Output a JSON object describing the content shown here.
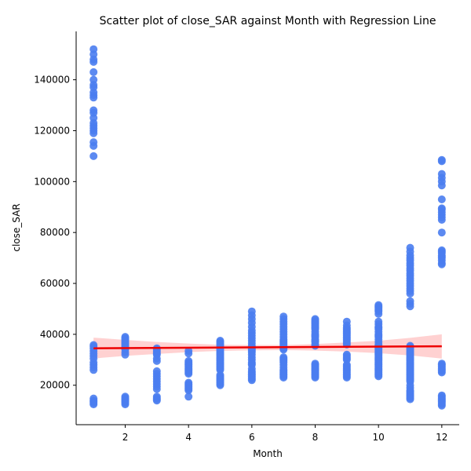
{
  "chart_data": {
    "type": "scatter",
    "title": "Scatter plot of close_SAR against Month with Regression Line",
    "xlabel": "Month",
    "ylabel": "close_SAR",
    "xlim": [
      0.45,
      12.55
    ],
    "ylim": [
      4500,
      159000
    ],
    "xticks": [
      2,
      4,
      6,
      8,
      10,
      12
    ],
    "yticks": [
      20000,
      40000,
      60000,
      80000,
      100000,
      120000,
      140000
    ],
    "grid": false,
    "point_color": "#4a7df0",
    "regression_color": "#ee0000",
    "band_color": "#ffb3b3",
    "points_by_month": [
      {
        "month": 1,
        "values": [
          152000,
          150000,
          148000,
          147000,
          143000,
          140000,
          138000,
          137000,
          135000,
          134000,
          133000,
          128000,
          127000,
          125000,
          123000,
          122000,
          121000,
          120000,
          119000,
          115500,
          114000,
          110000,
          35800,
          35200,
          34500,
          33500,
          32500,
          31500,
          30500,
          29000,
          28000,
          27000,
          26000,
          14800,
          14000,
          13500,
          13000,
          12500
        ]
      },
      {
        "month": 2,
        "values": [
          39000,
          38500,
          38000,
          37500,
          37000,
          36500,
          36000,
          35500,
          35000,
          34500,
          34000,
          33000,
          32000,
          15500,
          15000,
          14500,
          14000,
          13500,
          13000,
          12500
        ]
      },
      {
        "month": 3,
        "values": [
          34500,
          34000,
          33500,
          33000,
          32500,
          32000,
          30500,
          29500,
          25500,
          24500,
          23500,
          22500,
          21500,
          20500,
          19500,
          18500,
          15500,
          15000,
          14500,
          14000
        ]
      },
      {
        "month": 4,
        "values": [
          33500,
          32500,
          29500,
          29000,
          28500,
          28000,
          27500,
          27000,
          26500,
          26000,
          25500,
          25000,
          24500,
          21000,
          20500,
          20000,
          19500,
          19000,
          18500,
          18000,
          15500
        ]
      },
      {
        "month": 5,
        "values": [
          37500,
          37000,
          36500,
          36000,
          35500,
          35000,
          34500,
          34000,
          33500,
          33000,
          32500,
          32000,
          31500,
          31000,
          30500,
          30000,
          29500,
          29000,
          28500,
          28000,
          27500,
          27000,
          26500,
          26000,
          24000,
          23500,
          23000,
          22500,
          22000,
          21500,
          21000,
          20500,
          20000
        ]
      },
      {
        "month": 6,
        "values": [
          49000,
          47500,
          46000,
          44500,
          43000,
          41500,
          40500,
          39500,
          38500,
          37500,
          36500,
          35500,
          35000,
          34500,
          34000,
          33500,
          33000,
          32000,
          31000,
          30000,
          29000,
          28500,
          28000,
          26500,
          25500,
          25000,
          24500,
          24000,
          23500,
          23000,
          22500,
          22000
        ]
      },
      {
        "month": 7,
        "values": [
          47000,
          46000,
          45000,
          44000,
          43000,
          42000,
          41000,
          40000,
          39000,
          38000,
          37500,
          37000,
          36500,
          36000,
          35500,
          35000,
          34500,
          34000,
          31000,
          30500,
          30000,
          29500,
          29000,
          28000,
          27000,
          26000,
          25500,
          25000,
          24500,
          24000,
          23500,
          23000
        ]
      },
      {
        "month": 8,
        "values": [
          46000,
          45500,
          45000,
          44500,
          44000,
          43500,
          43000,
          42500,
          42000,
          41000,
          40000,
          39500,
          39000,
          38000,
          37500,
          37000,
          36000,
          35500,
          28500,
          28000,
          27500,
          27000,
          26500,
          26000,
          25500,
          25000,
          24500,
          24000,
          23500,
          23000
        ]
      },
      {
        "month": 9,
        "values": [
          45000,
          43500,
          42500,
          42000,
          41500,
          41000,
          40500,
          40000,
          39500,
          39000,
          38500,
          38000,
          37500,
          37000,
          36500,
          36000,
          32000,
          31500,
          31000,
          30500,
          30000,
          28000,
          27500,
          27000,
          26500,
          26000,
          25500,
          25000,
          24500,
          24000,
          23500,
          23000
        ]
      },
      {
        "month": 10,
        "values": [
          51500,
          51000,
          50500,
          50000,
          49500,
          49000,
          48000,
          45000,
          44000,
          43000,
          42500,
          42000,
          41000,
          40000,
          39500,
          39000,
          38000,
          37000,
          36000,
          35500,
          35000,
          34500,
          34000,
          33500,
          33000,
          32500,
          32000,
          31500,
          31000,
          30500,
          30000,
          29500,
          29000,
          28500,
          28000,
          27500,
          27000,
          26500,
          26000,
          25500,
          25000,
          24500,
          24000,
          23500
        ]
      },
      {
        "month": 11,
        "values": [
          74000,
          72500,
          71000,
          70000,
          69000,
          68000,
          67000,
          66000,
          65000,
          64000,
          63000,
          62000,
          61000,
          60000,
          59000,
          58000,
          57000,
          56000,
          53000,
          52000,
          51000,
          35500,
          35000,
          34500,
          34000,
          33500,
          33000,
          32500,
          32000,
          31500,
          31000,
          30500,
          30000,
          29500,
          29000,
          28500,
          28000,
          27500,
          27000,
          26500,
          26000,
          25500,
          25000,
          24500,
          24000,
          23500,
          23000,
          22500,
          22000,
          21500,
          20000,
          19000,
          18000,
          17500,
          17000,
          16500,
          16000,
          15500,
          15000,
          14500
        ]
      },
      {
        "month": 12,
        "values": [
          108500,
          108000,
          103000,
          101500,
          100000,
          98500,
          93000,
          89500,
          89000,
          88000,
          87000,
          86000,
          85000,
          80000,
          73000,
          72500,
          72000,
          71000,
          70500,
          70000,
          69000,
          68000,
          67500,
          28500,
          28000,
          27500,
          27000,
          26500,
          26000,
          25500,
          25000,
          16000,
          15500,
          15000,
          14500,
          14000,
          13500,
          13000,
          12500,
          12000
        ]
      }
    ],
    "regression": {
      "x": [
        1,
        12
      ],
      "y": [
        34500,
        35300
      ]
    },
    "confidence_band": {
      "x": [
        1,
        2,
        3,
        4,
        5,
        6,
        7,
        8,
        9,
        10,
        11,
        12
      ],
      "lower": [
        30500,
        31500,
        32300,
        33000,
        33500,
        33700,
        33800,
        33600,
        33200,
        32600,
        31700,
        30500
      ],
      "upper": [
        38700,
        37800,
        37000,
        36400,
        35900,
        35800,
        35800,
        36200,
        36800,
        37500,
        38600,
        40000
      ]
    }
  }
}
